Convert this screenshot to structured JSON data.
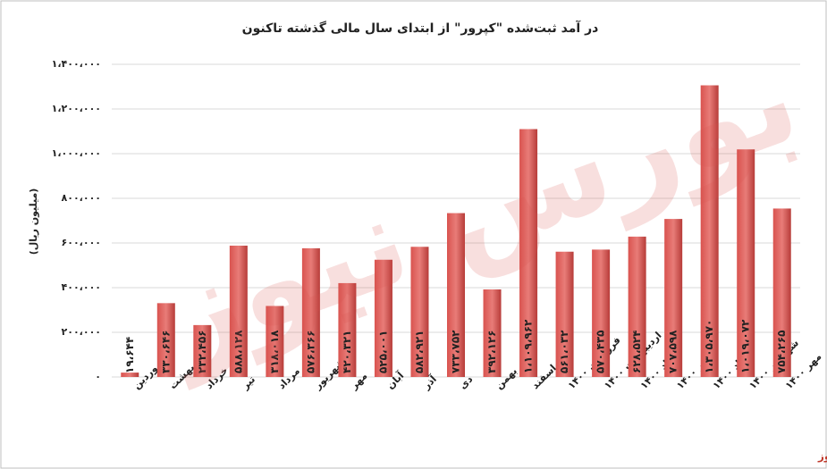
{
  "chart_data": {
    "type": "bar",
    "title": "در آمد ثبت‌شده \"کپرور\" از ابتدای سال مالی گذشته تاکنون",
    "y_label": "(میلیون ریال)",
    "source": "بورس نیوز",
    "categories": [
      "فروردین",
      "اردیبهشت",
      "خرداد",
      "تیر",
      "مرداد",
      "شهریور",
      "مهر",
      "آبان",
      "آذر",
      "دی",
      "بهمن",
      "اسفند",
      "فروردین ۱۴۰۰",
      "اردیبهشت ۱۴۰۰",
      "خرداد ۱۴۰۰",
      "تیر ۱۴۰۰",
      "مرداد ۱۴۰۰",
      "شهریور ۱۴۰۰",
      "مهر ۱۴۰۰"
    ],
    "values": [
      19644,
      330646,
      232456,
      588128,
      318018,
      576366,
      420321,
      525001,
      582921,
      733752,
      392126,
      1109962,
      561032,
      570435,
      628524,
      707598,
      1305970,
      1019072,
      754265
    ],
    "value_labels": [
      "۱۹،۶۴۴",
      "۳۳۰،۶۴۶",
      "۲۳۲،۴۵۶",
      "۵۸۸،۱۲۸",
      "۳۱۸،۰۱۸",
      "۵۷۶،۳۶۶",
      "۴۲۰،۳۲۱",
      "۵۲۵،۰۰۱",
      "۵۸۲،۹۲۱",
      "۷۳۳،۷۵۲",
      "۳۹۲،۱۲۶",
      "۱،۱۰۹،۹۶۲",
      "۵۶۱،۰۳۲",
      "۵۷۰،۴۳۵",
      "۶۲۸،۵۲۴",
      "۷۰۷،۵۹۸",
      "۱،۳۰۵،۹۷۰",
      "۱،۰۱۹،۰۷۲",
      "۷۵۴،۲۶۵"
    ],
    "color": "#c0504d",
    "ylim": [
      0,
      1400000
    ],
    "yticks": [
      {
        "value": 0,
        "label": "۰"
      },
      {
        "value": 200000,
        "label": "۲۰۰،۰۰۰"
      },
      {
        "value": 400000,
        "label": "۴۰۰،۰۰۰"
      },
      {
        "value": 600000,
        "label": "۶۰۰،۰۰۰"
      },
      {
        "value": 800000,
        "label": "۸۰۰،۰۰۰"
      },
      {
        "value": 1000000,
        "label": "۱،۰۰۰،۰۰۰"
      },
      {
        "value": 1200000,
        "label": "۱،۲۰۰،۰۰۰"
      },
      {
        "value": 1400000,
        "label": "۱،۴۰۰،۰۰۰"
      }
    ],
    "grid": true
  }
}
